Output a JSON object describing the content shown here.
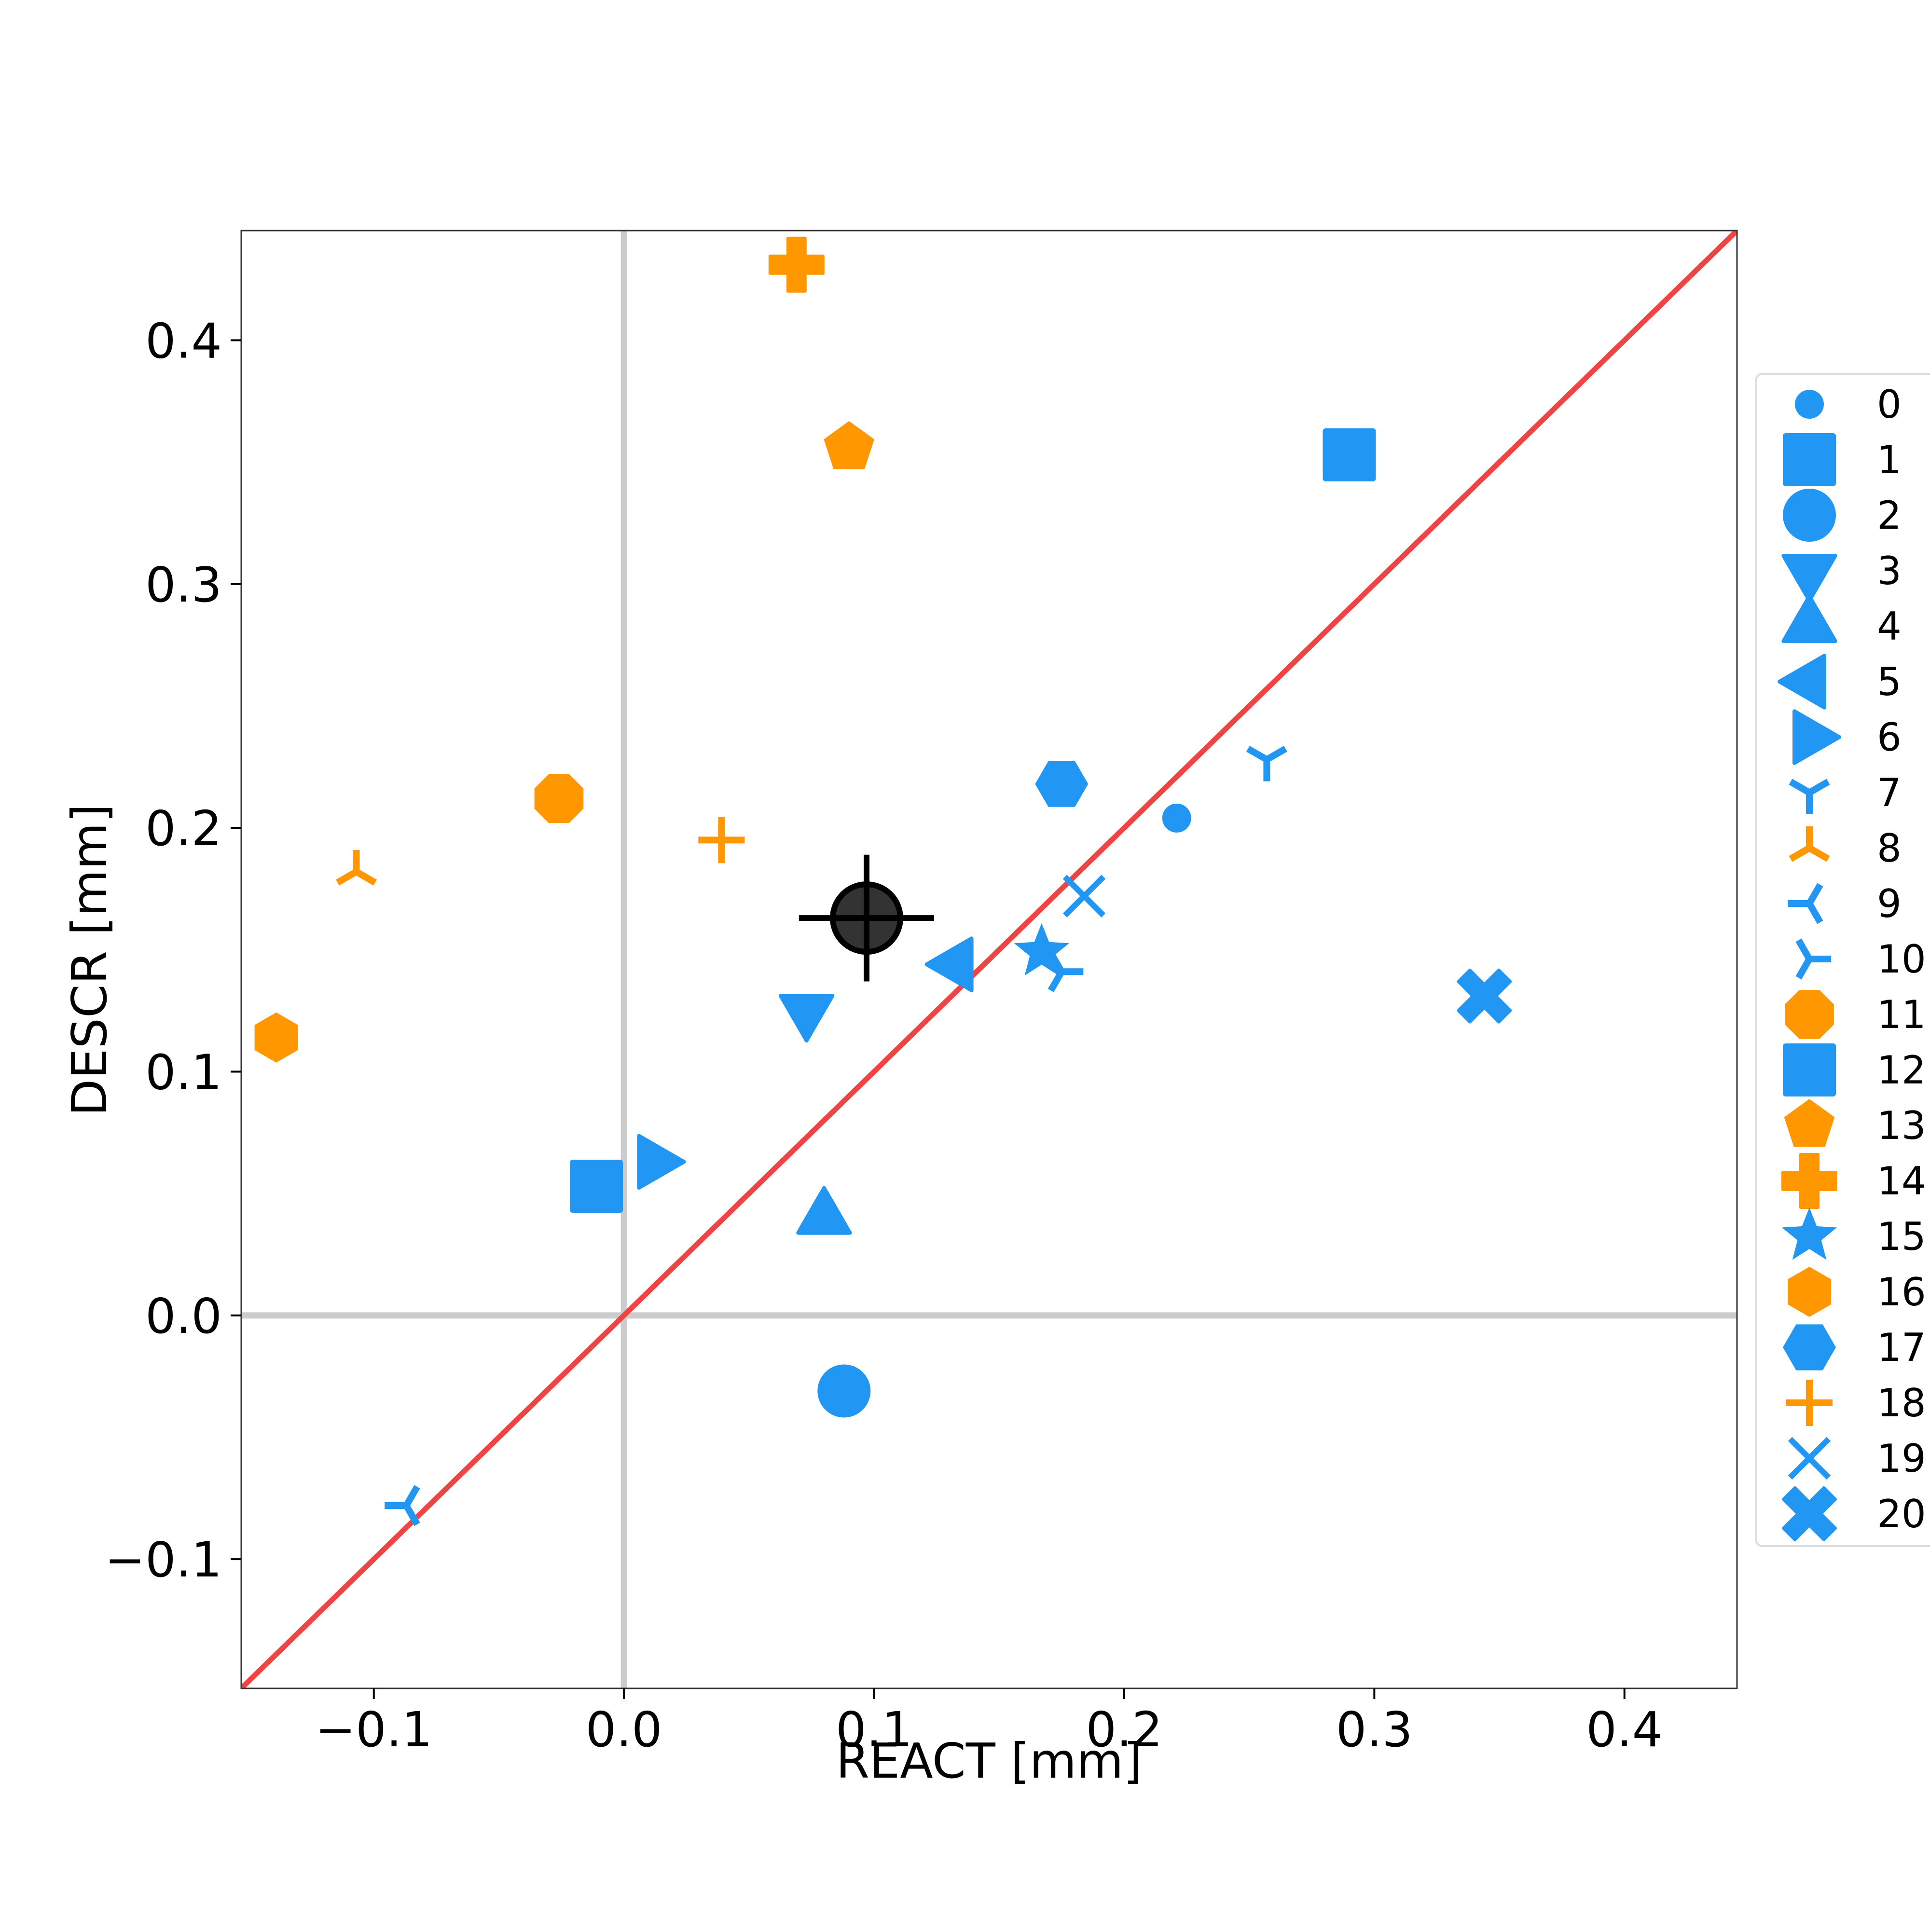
{
  "chart_data": {
    "type": "scatter",
    "xlabel": "REACT [mm]",
    "ylabel": "DESCR [mm]",
    "xlim": [
      -0.153,
      0.445
    ],
    "ylim": [
      -0.153,
      0.445
    ],
    "x_ticks": [
      -0.1,
      0.0,
      0.1,
      0.2,
      0.3,
      0.4
    ],
    "y_ticks": [
      -0.1,
      0.0,
      0.1,
      0.2,
      0.3,
      0.4
    ],
    "x_tick_labels": [
      "−0.1",
      "0.0",
      "0.1",
      "0.2",
      "0.3",
      "0.4"
    ],
    "y_tick_labels": [
      "−0.1",
      "0.0",
      "0.1",
      "0.2",
      "0.3",
      "0.4"
    ],
    "grid": false,
    "legend_position": "right",
    "reference_lines": [
      {
        "kind": "vertical",
        "x": 0.0,
        "color": "#cccccc"
      },
      {
        "kind": "horizontal",
        "y": 0.0,
        "color": "#cccccc"
      },
      {
        "kind": "identity",
        "color": "#ef4444"
      }
    ],
    "series": [
      {
        "name": "0",
        "x": 0.221,
        "y": 0.204,
        "marker": "circle-small",
        "color": "#2196f3"
      },
      {
        "name": "1",
        "x": 0.29,
        "y": 0.353,
        "marker": "square",
        "color": "#2196f3"
      },
      {
        "name": "2",
        "x": 0.088,
        "y": -0.031,
        "marker": "circle",
        "color": "#2196f3"
      },
      {
        "name": "3",
        "x": 0.073,
        "y": 0.125,
        "marker": "triangle-down",
        "color": "#2196f3"
      },
      {
        "name": "4",
        "x": 0.08,
        "y": 0.04,
        "marker": "triangle-up",
        "color": "#2196f3"
      },
      {
        "name": "5",
        "x": 0.133,
        "y": 0.144,
        "marker": "triangle-left",
        "color": "#2196f3"
      },
      {
        "name": "6",
        "x": 0.012,
        "y": 0.063,
        "marker": "triangle-right",
        "color": "#2196f3"
      },
      {
        "name": "7",
        "x": 0.257,
        "y": 0.228,
        "marker": "tri-down",
        "color": "#2196f3"
      },
      {
        "name": "8",
        "x": -0.107,
        "y": 0.182,
        "marker": "tri-up",
        "color": "#ff9800"
      },
      {
        "name": "9",
        "x": -0.087,
        "y": -0.078,
        "marker": "tri-left",
        "color": "#2196f3"
      },
      {
        "name": "10",
        "x": 0.175,
        "y": 0.141,
        "marker": "tri-right",
        "color": "#2196f3"
      },
      {
        "name": "11",
        "x": -0.026,
        "y": 0.212,
        "marker": "octagon",
        "color": "#ff9800"
      },
      {
        "name": "12",
        "x": -0.011,
        "y": 0.053,
        "marker": "square",
        "color": "#2196f3"
      },
      {
        "name": "13",
        "x": 0.09,
        "y": 0.356,
        "marker": "pentagon",
        "color": "#ff9800"
      },
      {
        "name": "14",
        "x": 0.069,
        "y": 0.431,
        "marker": "plus-filled",
        "color": "#ff9800"
      },
      {
        "name": "15",
        "x": 0.167,
        "y": 0.149,
        "marker": "star",
        "color": "#2196f3"
      },
      {
        "name": "16",
        "x": -0.139,
        "y": 0.114,
        "marker": "hexagon",
        "color": "#ff9800"
      },
      {
        "name": "17",
        "x": 0.175,
        "y": 0.218,
        "marker": "hexagon-flat",
        "color": "#2196f3"
      },
      {
        "name": "18",
        "x": 0.039,
        "y": 0.195,
        "marker": "plus",
        "color": "#ff9800"
      },
      {
        "name": "19",
        "x": 0.184,
        "y": 0.172,
        "marker": "x",
        "color": "#2196f3"
      },
      {
        "name": "20",
        "x": 0.344,
        "y": 0.131,
        "marker": "x-filled",
        "color": "#2196f3"
      }
    ],
    "mean_point": {
      "x": 0.097,
      "y": 0.163,
      "x_err": 0.027,
      "y_err": 0.026,
      "color": "#333333"
    }
  }
}
